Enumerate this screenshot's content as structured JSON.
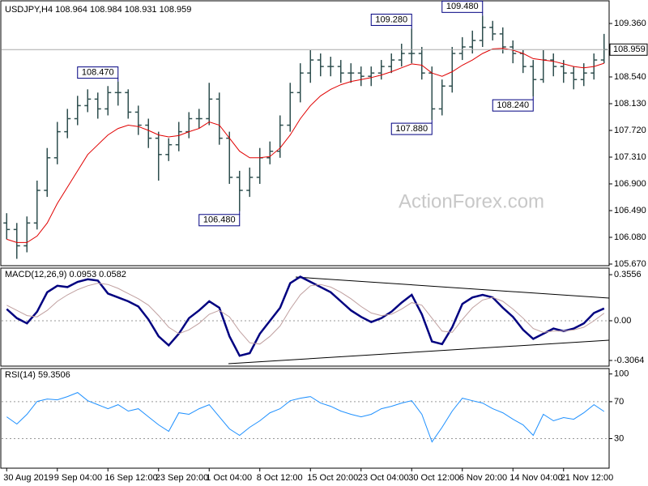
{
  "chart_data": [
    {
      "type": "ohlc",
      "title": "USDJPY,H4  108.964 108.984 108.931 108.959",
      "watermark": "ActionForex.com",
      "color": "#2f4f4f",
      "x": [
        "30 Aug 2019",
        null,
        null,
        null,
        null,
        "9 Sep 04:00",
        null,
        null,
        null,
        null,
        "16 Sep 12:00",
        null,
        null,
        null,
        null,
        "23 Sep 20:00",
        null,
        null,
        null,
        null,
        "1 Oct 04:00",
        null,
        null,
        null,
        null,
        "8 Oct 12:00",
        null,
        null,
        null,
        null,
        "15 Oct 20:00",
        null,
        null,
        null,
        null,
        "23 Oct 04:00",
        null,
        null,
        null,
        null,
        "30 Oct 12:00",
        null,
        null,
        null,
        null,
        "6 Nov 20:00",
        null,
        null,
        null,
        null,
        "14 Nov 04:00",
        null,
        null,
        null,
        null,
        "21 Nov 12:00",
        null,
        null,
        null,
        null
      ],
      "open": [
        106.3,
        106.2,
        105.95,
        106.3,
        106.8,
        107.3,
        107.7,
        107.9,
        108.1,
        108.2,
        108.05,
        108.3,
        108.3,
        108.0,
        107.8,
        107.6,
        107.35,
        107.5,
        107.7,
        107.9,
        107.9,
        108.2,
        107.6,
        107.0,
        106.8,
        107.0,
        107.3,
        107.4,
        107.8,
        108.3,
        108.6,
        108.8,
        108.7,
        108.7,
        108.6,
        108.6,
        108.55,
        108.6,
        108.7,
        108.8,
        108.9,
        108.9,
        108.6,
        108.05,
        108.4,
        108.9,
        109.0,
        109.1,
        109.3,
        109.2,
        109.0,
        108.9,
        108.7,
        108.5,
        108.8,
        108.7,
        108.6,
        108.5,
        108.6,
        108.8
      ],
      "high": [
        106.45,
        106.3,
        106.4,
        106.95,
        107.45,
        107.85,
        108.05,
        108.25,
        108.35,
        108.3,
        108.4,
        108.47,
        108.35,
        108.1,
        107.9,
        107.7,
        107.6,
        107.85,
        108.0,
        108.05,
        108.45,
        108.3,
        107.7,
        107.1,
        107.15,
        107.45,
        107.55,
        107.95,
        108.45,
        108.75,
        108.95,
        108.9,
        108.85,
        108.8,
        108.75,
        108.7,
        108.7,
        108.8,
        108.9,
        109.05,
        109.28,
        109.0,
        108.7,
        108.5,
        109.0,
        109.15,
        109.25,
        109.48,
        109.4,
        109.3,
        109.1,
        108.95,
        108.8,
        108.95,
        108.9,
        108.8,
        108.7,
        108.75,
        108.9,
        109.2
      ],
      "low": [
        106.05,
        105.75,
        105.85,
        106.2,
        106.7,
        107.2,
        107.6,
        107.8,
        108.0,
        107.9,
        107.95,
        108.1,
        107.9,
        107.65,
        107.45,
        106.95,
        107.25,
        107.4,
        107.6,
        107.75,
        107.8,
        107.5,
        106.9,
        106.48,
        106.7,
        106.9,
        107.2,
        107.3,
        107.7,
        108.15,
        108.45,
        108.55,
        108.55,
        108.45,
        108.45,
        108.4,
        108.4,
        108.5,
        108.6,
        108.7,
        108.75,
        108.5,
        107.88,
        107.95,
        108.3,
        108.8,
        108.9,
        109.0,
        109.1,
        108.9,
        108.75,
        108.6,
        108.24,
        108.45,
        108.55,
        108.45,
        108.35,
        108.4,
        108.5,
        108.75
      ],
      "close": [
        106.2,
        105.95,
        106.3,
        106.8,
        107.3,
        107.7,
        107.9,
        108.1,
        108.2,
        108.05,
        108.3,
        108.3,
        108.0,
        107.8,
        107.6,
        107.35,
        107.5,
        107.7,
        107.9,
        107.9,
        108.2,
        107.6,
        107.0,
        106.8,
        107.0,
        107.3,
        107.4,
        107.8,
        108.3,
        108.6,
        108.8,
        108.7,
        108.7,
        108.6,
        108.6,
        108.55,
        108.6,
        108.7,
        108.8,
        108.9,
        108.9,
        108.6,
        108.05,
        108.4,
        108.9,
        109.0,
        109.1,
        109.3,
        109.2,
        109.0,
        108.9,
        108.7,
        108.5,
        108.8,
        108.7,
        108.6,
        108.5,
        108.6,
        108.8,
        108.959
      ],
      "series": [
        {
          "color": "#e00000",
          "values": [
            106.05,
            106.0,
            106.0,
            106.1,
            106.3,
            106.6,
            106.85,
            107.1,
            107.35,
            107.5,
            107.65,
            107.75,
            107.8,
            107.78,
            107.72,
            107.65,
            107.62,
            107.64,
            107.7,
            107.75,
            107.85,
            107.8,
            107.6,
            107.4,
            107.3,
            107.3,
            107.32,
            107.45,
            107.65,
            107.9,
            108.1,
            108.25,
            108.35,
            108.42,
            108.47,
            108.5,
            108.53,
            108.57,
            108.62,
            108.68,
            108.74,
            108.72,
            108.6,
            108.55,
            108.62,
            108.72,
            108.8,
            108.9,
            108.97,
            108.98,
            108.95,
            108.9,
            108.82,
            108.8,
            108.78,
            108.74,
            108.7,
            108.68,
            108.7,
            108.75
          ]
        }
      ],
      "annotations": [
        {
          "value": 108.47,
          "label": "108.470"
        },
        {
          "value": 106.48,
          "label": "106.480"
        },
        {
          "value": 109.28,
          "label": "109.280"
        },
        {
          "value": 107.88,
          "label": "107.880"
        },
        {
          "value": 109.48,
          "label": "109.480"
        },
        {
          "value": 108.24,
          "label": "108.240"
        }
      ],
      "ylim": [
        105.645,
        109.658
      ],
      "yticks": [
        {
          "value": 109.36,
          "label": "109.360"
        },
        {
          "value": 108.54,
          "label": "108.540"
        },
        {
          "value": 108.13,
          "label": "108.130"
        },
        {
          "value": 107.72,
          "label": "107.720"
        },
        {
          "value": 107.31,
          "label": "107.310"
        },
        {
          "value": 106.9,
          "label": "106.900"
        },
        {
          "value": 106.49,
          "label": "106.490"
        },
        {
          "value": 106.08,
          "label": "106.080"
        },
        {
          "value": 105.67,
          "label": "105.670"
        }
      ]
    },
    {
      "type": "line",
      "title": "MACD(12,26,9) 0.0953 0.0582",
      "series": [
        {
          "color": "#000080",
          "values": [
            0.09,
            0.02,
            -0.02,
            0.07,
            0.22,
            0.27,
            0.26,
            0.3,
            0.32,
            0.31,
            0.21,
            0.18,
            0.15,
            0.11,
            0.01,
            -0.12,
            -0.19,
            -0.1,
            0.02,
            0.08,
            0.15,
            0.1,
            -0.12,
            -0.27,
            -0.25,
            -0.1,
            0,
            0.1,
            0.29,
            0.34,
            0.3,
            0.26,
            0.22,
            0.15,
            0.08,
            0.03,
            -0.01,
            0.02,
            0.07,
            0.14,
            0.2,
            0.05,
            -0.16,
            -0.18,
            -0.05,
            0.13,
            0.18,
            0.2,
            0.18,
            0.1,
            0.03,
            -0.07,
            -0.14,
            -0.1,
            -0.06,
            -0.08,
            -0.06,
            -0.02,
            0.06,
            0.0953
          ]
        },
        {
          "color": "#c0a0a0",
          "values": [
            0.12,
            0.08,
            0.04,
            0.03,
            0.08,
            0.15,
            0.2,
            0.24,
            0.27,
            0.29,
            0.28,
            0.25,
            0.21,
            0.17,
            0.12,
            0.04,
            -0.05,
            -0.1,
            -0.07,
            -0.02,
            0.05,
            0.08,
            0.03,
            -0.08,
            -0.17,
            -0.18,
            -0.12,
            -0.04,
            0.09,
            0.2,
            0.27,
            0.28,
            0.26,
            0.22,
            0.17,
            0.11,
            0.06,
            0.04,
            0.05,
            0.09,
            0.14,
            0.12,
            0.02,
            -0.08,
            -0.09,
            0.01,
            0.1,
            0.16,
            0.18,
            0.15,
            0.09,
            0.02,
            -0.06,
            -0.09,
            -0.08,
            -0.08,
            -0.07,
            -0.05,
            0.0,
            0.0582
          ]
        }
      ],
      "levels": [
        0
      ],
      "ylim": [
        -0.35,
        0.4
      ],
      "yticks": [
        0.3556,
        {
          "value": 0,
          "label": "0.00"
        },
        -0.3064
      ]
    },
    {
      "type": "line",
      "title": "RSI(14) 59.3506",
      "series": [
        {
          "color": "#1e90ff",
          "values": [
            53.6,
            45.8,
            56.3,
            70.3,
            72.9,
            72,
            75.5,
            79.9,
            71.1,
            66.8,
            62.4,
            66.8,
            59.8,
            62.4,
            53.6,
            44.9,
            37.9,
            58,
            56.3,
            62.4,
            66.8,
            53.6,
            40.5,
            33.5,
            42.3,
            49.3,
            58,
            62.4,
            71.1,
            73.8,
            75.5,
            68.5,
            65,
            59.8,
            56.3,
            53.6,
            56.3,
            62.4,
            65,
            68.5,
            71.1,
            56.3,
            26.5,
            42.3,
            59.8,
            73.8,
            71.1,
            68.5,
            62.4,
            58,
            51,
            44.9,
            33.5,
            56.3,
            49.3,
            52.8,
            51,
            58,
            66.8,
            59.3506
          ]
        }
      ],
      "levels": [
        70,
        30
      ],
      "ylim": [
        -2,
        105
      ],
      "yticks": [
        100,
        70,
        30
      ]
    }
  ]
}
